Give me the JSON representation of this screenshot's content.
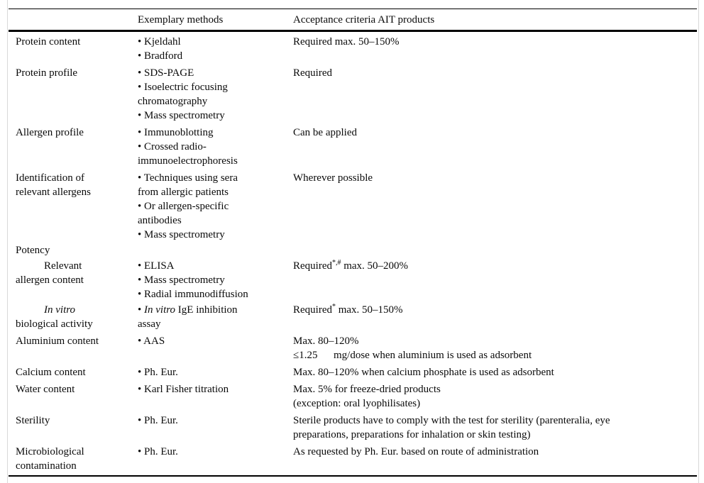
{
  "table": {
    "headers": [
      "",
      "Exemplary methods",
      "Acceptance criteria AIT products"
    ],
    "rows": [
      {
        "label": [
          "Protein content"
        ],
        "methods": [
          "• Kjeldahl",
          "• Bradford"
        ],
        "criteria": [
          "Required max. 50–150%"
        ]
      },
      {
        "label": [
          "Protein profile"
        ],
        "methods": [
          "• SDS-PAGE",
          "• Isoelectric focusing",
          "chromatography",
          "• Mass spectrometry"
        ],
        "criteria": [
          "Required"
        ]
      },
      {
        "label": [
          "Allergen profile"
        ],
        "methods": [
          "• Immunoblotting",
          "• Crossed radio-",
          "immunoelectrophoresis"
        ],
        "criteria": [
          "Can be applied"
        ]
      },
      {
        "label": [
          "Identification of",
          "relevant allergens"
        ],
        "methods": [
          "• Techniques using sera",
          "from allergic patients",
          "• Or allergen-specific",
          "antibodies",
          "• Mass spectrometry"
        ],
        "criteria": [
          "Wherever possible"
        ]
      },
      {
        "tight": true,
        "label": [
          "Potency"
        ],
        "methods": [],
        "criteria": []
      },
      {
        "tight": true,
        "label": [
          [
            {
              "t": "Relevant",
              "ind": true
            }
          ],
          "allergen content"
        ],
        "methods": [
          "• ELISA",
          "• Mass spectrometry",
          "• Radial immunodiffusion"
        ],
        "criteria": [
          [
            {
              "t": "Required"
            },
            {
              "t": "*,#",
              "sup": true
            },
            {
              "t": " max. 50–200%"
            }
          ]
        ]
      },
      {
        "tight": true,
        "label": [
          [
            {
              "t": "In vitro",
              "i": true,
              "ind": true
            }
          ],
          "biological activity"
        ],
        "methods": [
          [
            {
              "t": "• "
            },
            {
              "t": "In vitro",
              "i": true
            },
            {
              "t": " IgE inhibition"
            }
          ],
          "assay"
        ],
        "criteria": [
          [
            {
              "t": "Required"
            },
            {
              "t": "*",
              "sup": true
            },
            {
              "t": " max. 50–150%"
            }
          ]
        ]
      },
      {
        "label": [
          "Aluminium content"
        ],
        "methods": [
          "• AAS"
        ],
        "criteria": [
          "Max. 80–120%",
          "≤1.25      mg/dose when aluminium is used as adsorbent"
        ]
      },
      {
        "label": [
          "Calcium content"
        ],
        "methods": [
          "• Ph. Eur."
        ],
        "criteria": [
          "Max. 80–120% when calcium phosphate is used as adsorbent"
        ]
      },
      {
        "label": [
          "Water content"
        ],
        "methods": [
          "• Karl Fisher titration"
        ],
        "criteria": [
          "Max. 5% for freeze-dried products",
          "(exception: oral lyophilisates)"
        ]
      },
      {
        "label": [
          "Sterility"
        ],
        "methods": [
          "• Ph. Eur."
        ],
        "criteria": [
          "Sterile products have to comply with the test for sterility (parenteralia, eye",
          "preparations, preparations for inhalation or skin testing)"
        ]
      },
      {
        "label": [
          "Microbiological",
          "contamination"
        ],
        "methods": [
          "• Ph. Eur."
        ],
        "criteria": [
          "As requested by Ph. Eur. based on route of administration"
        ]
      }
    ]
  }
}
